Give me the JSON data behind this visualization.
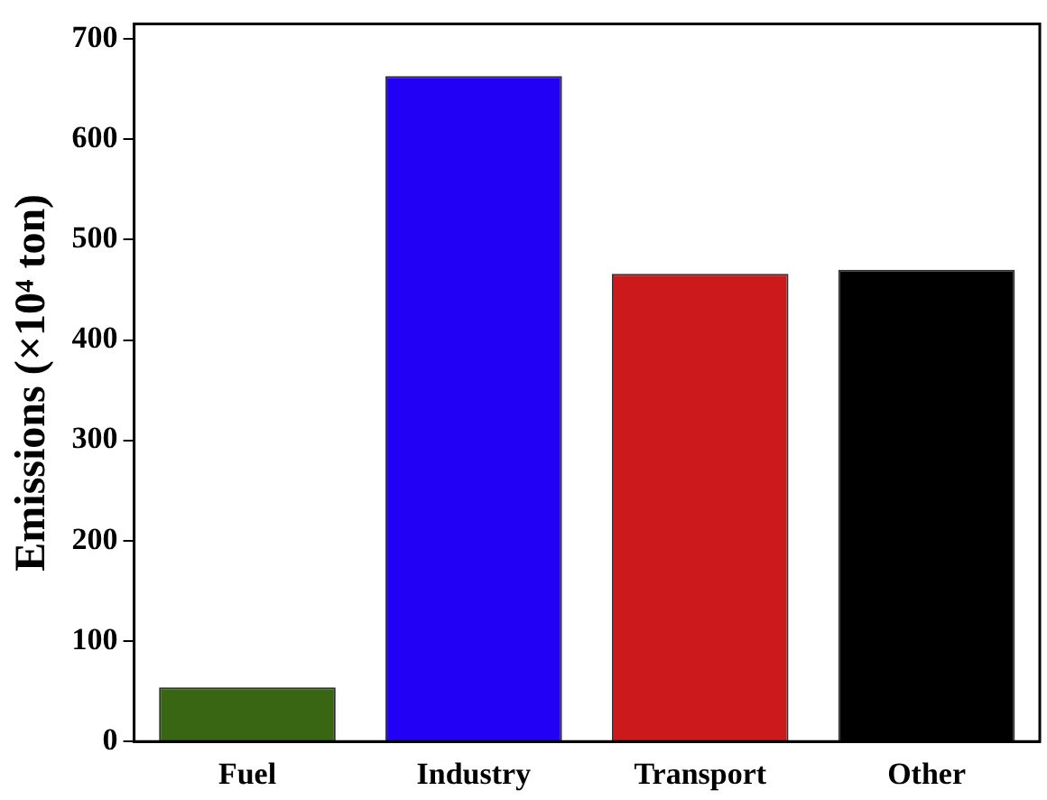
{
  "chart_data": {
    "type": "bar",
    "ylabel": "Emissions (×10⁴ ton)",
    "categories": [
      "Fuel",
      "Industry",
      "Transport",
      "Other"
    ],
    "values": [
      54,
      663,
      466,
      470
    ],
    "colors": [
      "#396613",
      "#2200f5",
      "#cc1a1c",
      "#000000"
    ],
    "ylim": [
      0,
      715
    ],
    "yticks": [
      0,
      100,
      200,
      300,
      400,
      500,
      600,
      700
    ],
    "grid": false,
    "legend": false
  }
}
